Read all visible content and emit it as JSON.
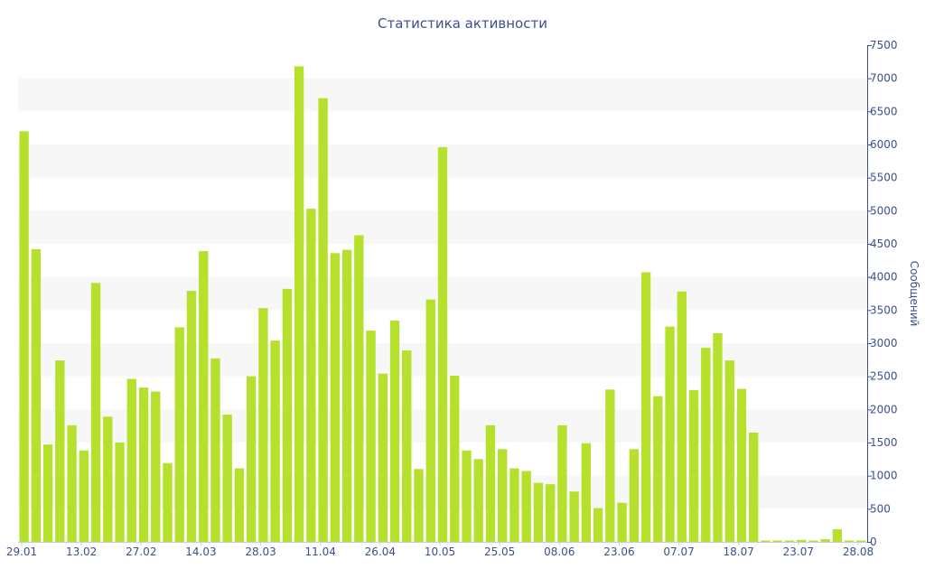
{
  "chart_data": {
    "type": "bar",
    "title": "Статистика активности",
    "ylabel": "Сообщений",
    "ylim": [
      0,
      7500
    ],
    "y_ticks": [
      0,
      500,
      1000,
      1500,
      2000,
      2500,
      3000,
      3500,
      4000,
      4500,
      5000,
      5500,
      6000,
      6500,
      7000,
      7500
    ],
    "x_tick_labels": [
      "29.01",
      "13.02",
      "27.02",
      "14.03",
      "28.03",
      "11.04",
      "26.04",
      "10.05",
      "25.05",
      "08.06",
      "23.06",
      "07.07",
      "18.07",
      "23.07",
      "28.08"
    ],
    "grid": "alternating horizontal bands",
    "bar_color": "#b5e02b",
    "values": [
      6200,
      4420,
      1470,
      2740,
      1760,
      1380,
      3910,
      1890,
      1500,
      2460,
      2330,
      2270,
      1190,
      3240,
      3790,
      4390,
      2770,
      1920,
      1110,
      2500,
      3530,
      3040,
      3820,
      7180,
      5030,
      6700,
      4360,
      4410,
      4630,
      3190,
      2540,
      3340,
      2890,
      1100,
      3660,
      5960,
      2510,
      1380,
      1250,
      1760,
      1400,
      1110,
      1070,
      890,
      870,
      1760,
      760,
      1490,
      510,
      2300,
      590,
      1400,
      4070,
      2200,
      3250,
      3780,
      2290,
      2930,
      3150,
      2740,
      2310,
      1650,
      20,
      20,
      20,
      30,
      20,
      40,
      190,
      20,
      20
    ]
  }
}
